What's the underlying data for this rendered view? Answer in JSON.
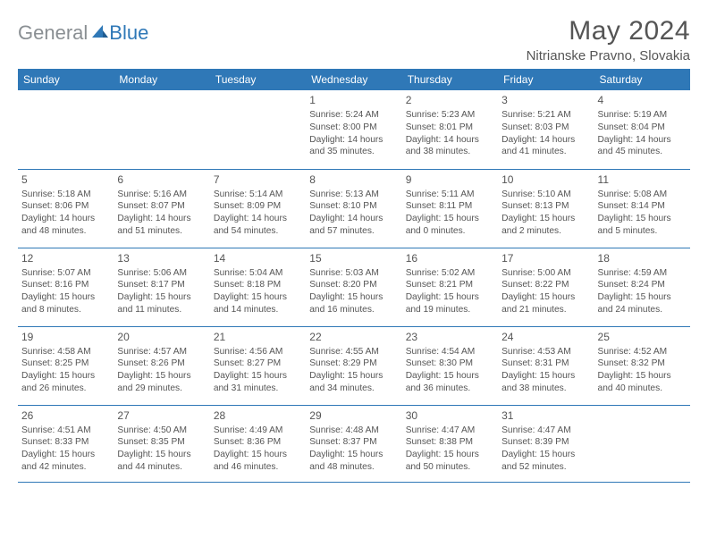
{
  "logo": {
    "general": "General",
    "blue": "Blue"
  },
  "header": {
    "month_title": "May 2024",
    "location": "Nitrianske Pravno, Slovakia"
  },
  "colors": {
    "header_bg": "#2f78b7",
    "header_text": "#ffffff",
    "body_text": "#555555",
    "logo_gray": "#8a8f93",
    "logo_blue": "#2f78b7",
    "rule": "#2f78b7",
    "background": "#ffffff"
  },
  "day_headers": [
    "Sunday",
    "Monday",
    "Tuesday",
    "Wednesday",
    "Thursday",
    "Friday",
    "Saturday"
  ],
  "weeks": [
    [
      {
        "n": "",
        "sr": "",
        "ss": "",
        "dl": ""
      },
      {
        "n": "",
        "sr": "",
        "ss": "",
        "dl": ""
      },
      {
        "n": "",
        "sr": "",
        "ss": "",
        "dl": ""
      },
      {
        "n": "1",
        "sr": "Sunrise: 5:24 AM",
        "ss": "Sunset: 8:00 PM",
        "dl": "Daylight: 14 hours and 35 minutes."
      },
      {
        "n": "2",
        "sr": "Sunrise: 5:23 AM",
        "ss": "Sunset: 8:01 PM",
        "dl": "Daylight: 14 hours and 38 minutes."
      },
      {
        "n": "3",
        "sr": "Sunrise: 5:21 AM",
        "ss": "Sunset: 8:03 PM",
        "dl": "Daylight: 14 hours and 41 minutes."
      },
      {
        "n": "4",
        "sr": "Sunrise: 5:19 AM",
        "ss": "Sunset: 8:04 PM",
        "dl": "Daylight: 14 hours and 45 minutes."
      }
    ],
    [
      {
        "n": "5",
        "sr": "Sunrise: 5:18 AM",
        "ss": "Sunset: 8:06 PM",
        "dl": "Daylight: 14 hours and 48 minutes."
      },
      {
        "n": "6",
        "sr": "Sunrise: 5:16 AM",
        "ss": "Sunset: 8:07 PM",
        "dl": "Daylight: 14 hours and 51 minutes."
      },
      {
        "n": "7",
        "sr": "Sunrise: 5:14 AM",
        "ss": "Sunset: 8:09 PM",
        "dl": "Daylight: 14 hours and 54 minutes."
      },
      {
        "n": "8",
        "sr": "Sunrise: 5:13 AM",
        "ss": "Sunset: 8:10 PM",
        "dl": "Daylight: 14 hours and 57 minutes."
      },
      {
        "n": "9",
        "sr": "Sunrise: 5:11 AM",
        "ss": "Sunset: 8:11 PM",
        "dl": "Daylight: 15 hours and 0 minutes."
      },
      {
        "n": "10",
        "sr": "Sunrise: 5:10 AM",
        "ss": "Sunset: 8:13 PM",
        "dl": "Daylight: 15 hours and 2 minutes."
      },
      {
        "n": "11",
        "sr": "Sunrise: 5:08 AM",
        "ss": "Sunset: 8:14 PM",
        "dl": "Daylight: 15 hours and 5 minutes."
      }
    ],
    [
      {
        "n": "12",
        "sr": "Sunrise: 5:07 AM",
        "ss": "Sunset: 8:16 PM",
        "dl": "Daylight: 15 hours and 8 minutes."
      },
      {
        "n": "13",
        "sr": "Sunrise: 5:06 AM",
        "ss": "Sunset: 8:17 PM",
        "dl": "Daylight: 15 hours and 11 minutes."
      },
      {
        "n": "14",
        "sr": "Sunrise: 5:04 AM",
        "ss": "Sunset: 8:18 PM",
        "dl": "Daylight: 15 hours and 14 minutes."
      },
      {
        "n": "15",
        "sr": "Sunrise: 5:03 AM",
        "ss": "Sunset: 8:20 PM",
        "dl": "Daylight: 15 hours and 16 minutes."
      },
      {
        "n": "16",
        "sr": "Sunrise: 5:02 AM",
        "ss": "Sunset: 8:21 PM",
        "dl": "Daylight: 15 hours and 19 minutes."
      },
      {
        "n": "17",
        "sr": "Sunrise: 5:00 AM",
        "ss": "Sunset: 8:22 PM",
        "dl": "Daylight: 15 hours and 21 minutes."
      },
      {
        "n": "18",
        "sr": "Sunrise: 4:59 AM",
        "ss": "Sunset: 8:24 PM",
        "dl": "Daylight: 15 hours and 24 minutes."
      }
    ],
    [
      {
        "n": "19",
        "sr": "Sunrise: 4:58 AM",
        "ss": "Sunset: 8:25 PM",
        "dl": "Daylight: 15 hours and 26 minutes."
      },
      {
        "n": "20",
        "sr": "Sunrise: 4:57 AM",
        "ss": "Sunset: 8:26 PM",
        "dl": "Daylight: 15 hours and 29 minutes."
      },
      {
        "n": "21",
        "sr": "Sunrise: 4:56 AM",
        "ss": "Sunset: 8:27 PM",
        "dl": "Daylight: 15 hours and 31 minutes."
      },
      {
        "n": "22",
        "sr": "Sunrise: 4:55 AM",
        "ss": "Sunset: 8:29 PM",
        "dl": "Daylight: 15 hours and 34 minutes."
      },
      {
        "n": "23",
        "sr": "Sunrise: 4:54 AM",
        "ss": "Sunset: 8:30 PM",
        "dl": "Daylight: 15 hours and 36 minutes."
      },
      {
        "n": "24",
        "sr": "Sunrise: 4:53 AM",
        "ss": "Sunset: 8:31 PM",
        "dl": "Daylight: 15 hours and 38 minutes."
      },
      {
        "n": "25",
        "sr": "Sunrise: 4:52 AM",
        "ss": "Sunset: 8:32 PM",
        "dl": "Daylight: 15 hours and 40 minutes."
      }
    ],
    [
      {
        "n": "26",
        "sr": "Sunrise: 4:51 AM",
        "ss": "Sunset: 8:33 PM",
        "dl": "Daylight: 15 hours and 42 minutes."
      },
      {
        "n": "27",
        "sr": "Sunrise: 4:50 AM",
        "ss": "Sunset: 8:35 PM",
        "dl": "Daylight: 15 hours and 44 minutes."
      },
      {
        "n": "28",
        "sr": "Sunrise: 4:49 AM",
        "ss": "Sunset: 8:36 PM",
        "dl": "Daylight: 15 hours and 46 minutes."
      },
      {
        "n": "29",
        "sr": "Sunrise: 4:48 AM",
        "ss": "Sunset: 8:37 PM",
        "dl": "Daylight: 15 hours and 48 minutes."
      },
      {
        "n": "30",
        "sr": "Sunrise: 4:47 AM",
        "ss": "Sunset: 8:38 PM",
        "dl": "Daylight: 15 hours and 50 minutes."
      },
      {
        "n": "31",
        "sr": "Sunrise: 4:47 AM",
        "ss": "Sunset: 8:39 PM",
        "dl": "Daylight: 15 hours and 52 minutes."
      },
      {
        "n": "",
        "sr": "",
        "ss": "",
        "dl": ""
      }
    ]
  ]
}
